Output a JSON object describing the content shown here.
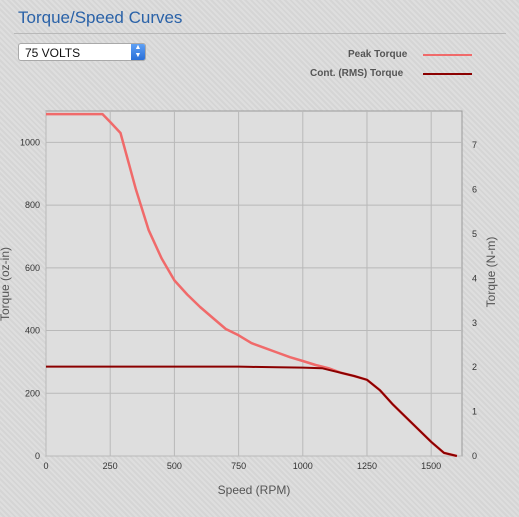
{
  "header": {
    "title": "Torque/Speed Curves"
  },
  "controls": {
    "voltage_select_value": "75 VOLTS"
  },
  "legend": {
    "peak_label": "Peak Torque",
    "cont_label": "Cont. (RMS) Torque"
  },
  "colors": {
    "peak": "#f06a6a",
    "cont": "#8b0000",
    "title": "#2a62a8"
  },
  "chart_data": {
    "type": "line",
    "title": "Torque/Speed Curves",
    "xlabel": "Speed (RPM)",
    "ylabel": "Torque (oz-in)",
    "y2label": "Torque (N-m)",
    "xlim": [
      0,
      1620
    ],
    "ylim": [
      0,
      1100
    ],
    "y2lim": [
      0,
      7.77
    ],
    "x_ticks": [
      0,
      250,
      500,
      750,
      1000,
      1250,
      1500
    ],
    "x_tick_labels": [
      "0",
      "250",
      "500",
      "750",
      "1000",
      "1250",
      "1500"
    ],
    "y_ticks": [
      0,
      200,
      400,
      600,
      800,
      1000
    ],
    "y_tick_labels": [
      "0",
      "200",
      "400",
      "600",
      "800",
      "1000"
    ],
    "y2_ticks": [
      0,
      1,
      2,
      3,
      4,
      5,
      6,
      7
    ],
    "y2_tick_labels": [
      "0",
      "1",
      "2",
      "3",
      "4",
      "5",
      "6",
      "7"
    ],
    "grid": true,
    "legend_position": "top-right",
    "series": [
      {
        "name": "Peak Torque",
        "x": [
          0,
          220,
          250,
          290,
          350,
          400,
          450,
          500,
          550,
          600,
          650,
          700,
          750,
          800,
          850,
          900,
          950,
          1000,
          1050,
          1100,
          1150,
          1200,
          1250,
          1300,
          1350,
          1400,
          1450,
          1500,
          1550,
          1600
        ],
        "y": [
          1090,
          1090,
          1065,
          1030,
          850,
          720,
          630,
          560,
          515,
          475,
          440,
          405,
          385,
          360,
          345,
          330,
          315,
          303,
          290,
          280,
          265,
          255,
          243,
          210,
          165,
          125,
          85,
          45,
          10,
          0
        ]
      },
      {
        "name": "Cont. (RMS) Torque",
        "x": [
          0,
          250,
          500,
          750,
          800,
          900,
          1000,
          1075,
          1100,
          1150,
          1200,
          1250,
          1300,
          1350,
          1400,
          1450,
          1500,
          1550,
          1600
        ],
        "y": [
          285,
          285,
          285,
          285,
          284,
          283,
          282,
          280,
          275,
          265,
          255,
          243,
          210,
          165,
          125,
          85,
          45,
          10,
          0
        ]
      }
    ]
  }
}
